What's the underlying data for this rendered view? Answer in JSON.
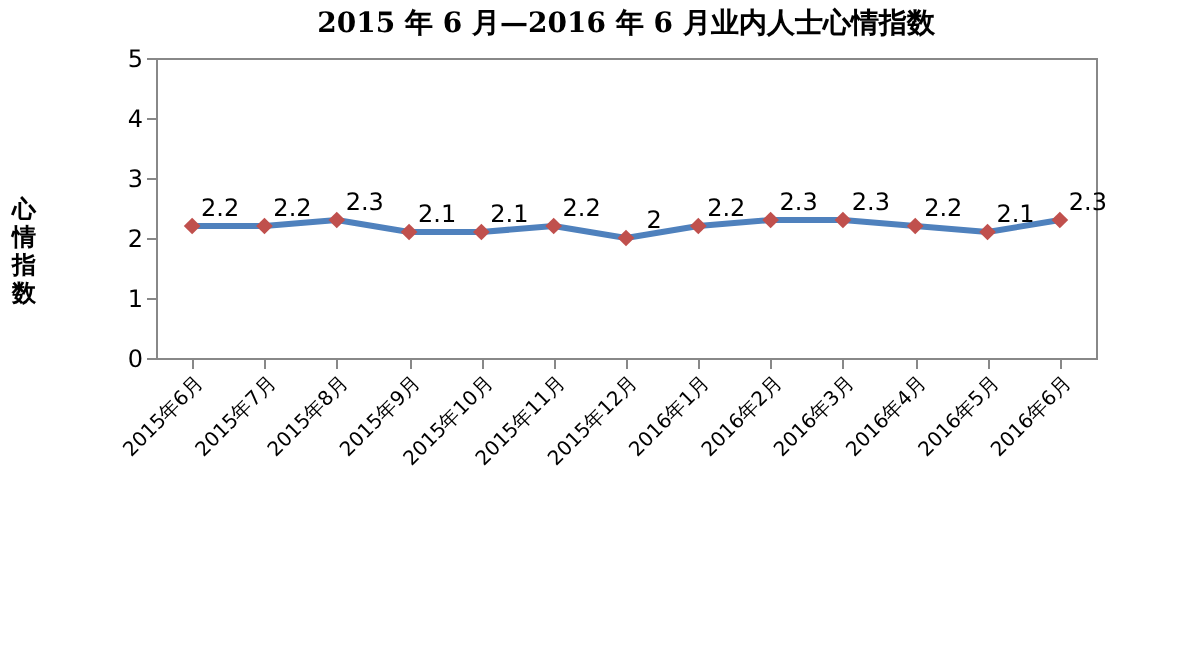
{
  "chart_data": {
    "type": "line",
    "title": "2015 年 6 月—2016 年 6 月业内人士心情指数",
    "ylabel": "心情指数",
    "categories": [
      "2015年6月",
      "2015年7月",
      "2015年8月",
      "2015年9月",
      "2015年10月",
      "2015年11月",
      "2015年12月",
      "2016年1月",
      "2016年2月",
      "2016年3月",
      "2016年4月",
      "2016年5月",
      "2016年6月"
    ],
    "series": [
      {
        "color": "#4f81bd",
        "colors": [
          "#c0504d",
          "#c0504d",
          "#c0504d",
          "#c0504d",
          "#c0504d",
          "#c0504d",
          "#c0504d",
          "#c0504d",
          "#c0504d",
          "#c0504d",
          "#c0504d",
          "#c0504d",
          "#c0504d"
        ],
        "values": [
          2.2,
          2.2,
          2.3,
          2.1,
          2.1,
          2.2,
          2,
          2.2,
          2.3,
          2.3,
          2.2,
          2.1,
          2.3
        ]
      }
    ],
    "ylim": [
      0,
      5
    ],
    "yticks": [
      0,
      1,
      2,
      3,
      4,
      5
    ],
    "grid": false,
    "marker": "diamond",
    "data_labels": true,
    "legend": false
  }
}
